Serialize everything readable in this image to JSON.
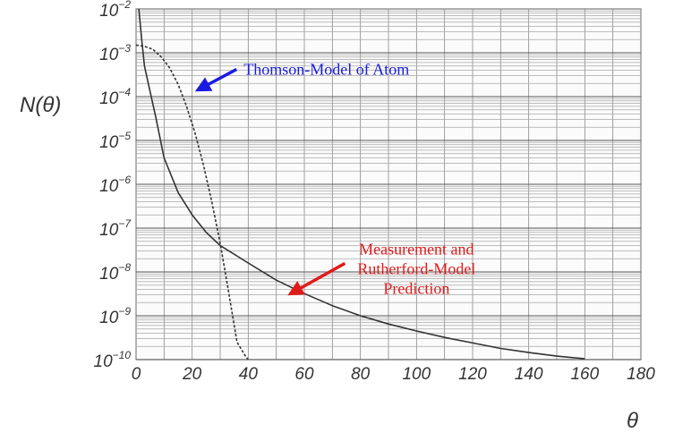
{
  "chart_data": {
    "type": "line",
    "title": "",
    "xlabel": "θ",
    "ylabel": "N(θ)",
    "x_scale": "linear",
    "y_scale": "log",
    "xlim": [
      0,
      180
    ],
    "ylim": [
      1e-10,
      0.01
    ],
    "grid": true,
    "x_ticks": [
      0,
      20,
      40,
      60,
      80,
      100,
      120,
      140,
      160,
      180
    ],
    "x_tick_labels": [
      "0",
      "20",
      "40",
      "60",
      "80",
      "100",
      "120",
      "140",
      "160",
      "180"
    ],
    "y_ticks": [
      1e-10,
      1e-09,
      1e-08,
      1e-07,
      1e-06,
      1e-05,
      0.0001,
      0.001,
      0.01
    ],
    "y_tick_labels": [
      {
        "base": "10",
        "exp": "−10"
      },
      {
        "base": "10",
        "exp": "−9"
      },
      {
        "base": "10",
        "exp": "−8"
      },
      {
        "base": "10",
        "exp": "−7"
      },
      {
        "base": "10",
        "exp": "−6"
      },
      {
        "base": "10",
        "exp": "−5"
      },
      {
        "base": "10",
        "exp": "−4"
      },
      {
        "base": "10",
        "exp": "−3"
      },
      {
        "base": "10",
        "exp": "−2"
      }
    ],
    "series": [
      {
        "style": "dashed",
        "x": [
          0,
          3,
          6,
          9,
          12,
          15,
          18,
          21,
          24,
          27,
          30,
          33,
          36,
          39,
          40
        ],
        "y": [
          0.0015,
          0.0014,
          0.0012,
          0.0008,
          0.00045,
          0.00019,
          6e-05,
          1.5e-05,
          2.8e-06,
          4e-07,
          4.5e-08,
          3.5e-09,
          2.5e-10,
          1.2e-10,
          1e-10
        ]
      },
      {
        "style": "solid",
        "x": [
          1,
          2,
          3,
          5,
          7,
          10,
          15,
          20,
          25,
          30,
          40,
          50,
          60,
          70,
          80,
          90,
          100,
          110,
          120,
          130,
          140,
          150,
          160
        ],
        "y": [
          0.01,
          0.002,
          0.0005,
          0.00013,
          3.5e-05,
          4e-06,
          6.5e-07,
          2e-07,
          8e-08,
          4e-08,
          1.6e-08,
          6.5e-09,
          3.2e-09,
          1.7e-09,
          1e-09,
          6.5e-10,
          4.5e-10,
          3.2e-10,
          2.4e-10,
          1.8e-10,
          1.45e-10,
          1.2e-10,
          1.05e-10
        ]
      }
    ],
    "annotations": [
      {
        "text": [
          "Thomson-Model of Atom"
        ],
        "color": "#1b1be0",
        "x": 32,
        "y_exp": -3.5,
        "arrow_to": {
          "x": 22,
          "y_exp": -3.85
        }
      },
      {
        "text": [
          "Measurement and",
          "Rutherford-Model",
          "Prediction"
        ],
        "color": "#e01b1b",
        "x": 100,
        "y_exp": -7.6,
        "arrow_to": {
          "x": 55,
          "y_exp": -8.5
        }
      }
    ]
  }
}
